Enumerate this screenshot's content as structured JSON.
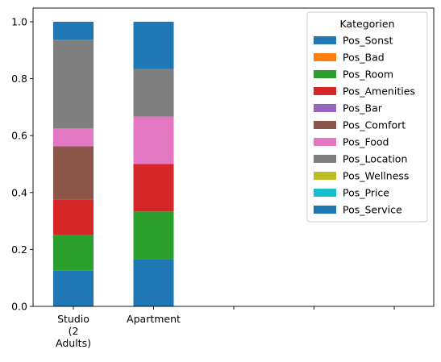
{
  "chart_data": {
    "type": "bar",
    "stacked": true,
    "categories": [
      "Studio\n(2\nAdults)",
      "Apartment",
      "",
      "",
      ""
    ],
    "ylim": [
      0,
      1.0
    ],
    "yticks": [
      "0.0",
      "0.2",
      "0.4",
      "0.6",
      "0.8",
      "1.0"
    ],
    "ytick_values": [
      0,
      0.2,
      0.4,
      0.6,
      0.8,
      1.0
    ],
    "title": "",
    "xlabel": "",
    "ylabel": "",
    "grid": false,
    "legend": {
      "title": "Kategorien",
      "placement": "top-right"
    },
    "series": [
      {
        "name": "Pos_Sonst",
        "color": "#1f77b4",
        "values": [
          0.125,
          0.1667,
          null,
          null,
          null
        ]
      },
      {
        "name": "Pos_Bad",
        "color": "#ff7f0e",
        "values": [
          0,
          0,
          null,
          null,
          null
        ]
      },
      {
        "name": "Pos_Room",
        "color": "#2ca02c",
        "values": [
          0.125,
          0.1667,
          null,
          null,
          null
        ]
      },
      {
        "name": "Pos_Amenities",
        "color": "#d62728",
        "values": [
          0.125,
          0.1667,
          null,
          null,
          null
        ]
      },
      {
        "name": "Pos_Bar",
        "color": "#9467bd",
        "values": [
          0,
          0,
          null,
          null,
          null
        ]
      },
      {
        "name": "Pos_Comfort",
        "color": "#8c564b",
        "values": [
          0.1875,
          0,
          null,
          null,
          null
        ]
      },
      {
        "name": "Pos_Food",
        "color": "#e377c2",
        "values": [
          0.0625,
          0.1667,
          null,
          null,
          null
        ]
      },
      {
        "name": "Pos_Location",
        "color": "#7f7f7f",
        "values": [
          0.3125,
          0.1667,
          null,
          null,
          null
        ]
      },
      {
        "name": "Pos_Wellness",
        "color": "#bcbd22",
        "values": [
          0,
          0,
          null,
          null,
          null
        ]
      },
      {
        "name": "Pos_Price",
        "color": "#17becf",
        "values": [
          0,
          0,
          null,
          null,
          null
        ]
      },
      {
        "name": "Pos_Service",
        "color": "#1f77b4",
        "values": [
          0.0625,
          0.1667,
          null,
          null,
          null
        ]
      }
    ]
  }
}
